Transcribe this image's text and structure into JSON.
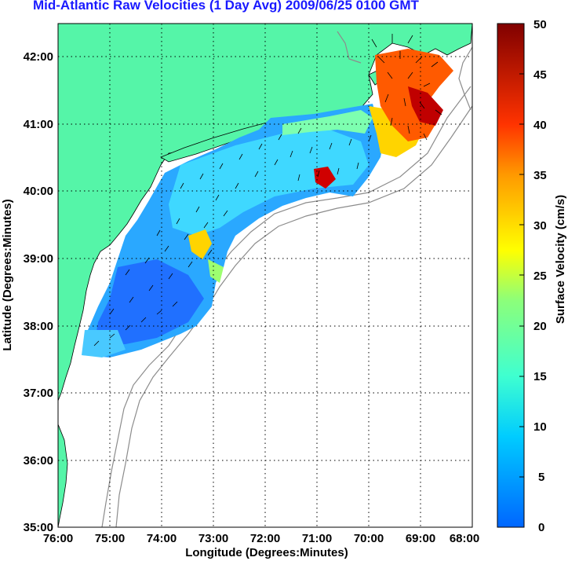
{
  "title": "Mid-Atlantic Raw Velocities (1 Day Avg) 2009/06/25 0100 GMT",
  "map": {
    "xlabel": "Longitude (Degrees:Minutes)",
    "ylabel": "Latitude (Degrees:Minutes)",
    "x_ticks": [
      "76:00",
      "75:00",
      "74:00",
      "73:00",
      "72:00",
      "71:00",
      "70:00",
      "69:00",
      "68:00"
    ],
    "y_ticks": [
      "42:00",
      "41:00",
      "40:00",
      "39:00",
      "38:00",
      "37:00",
      "36:00",
      "35:00"
    ],
    "lon_range": [
      -76,
      -68
    ],
    "lat_range": [
      35,
      42.5
    ],
    "land_color": "#55f5a8",
    "grid": "dotted"
  },
  "colorbar": {
    "label": "Surface Velocity (cm/s)",
    "ticks": [
      "50",
      "45",
      "40",
      "35",
      "30",
      "25",
      "20",
      "15",
      "10",
      "5",
      "0"
    ],
    "range": [
      0,
      50
    ]
  }
}
